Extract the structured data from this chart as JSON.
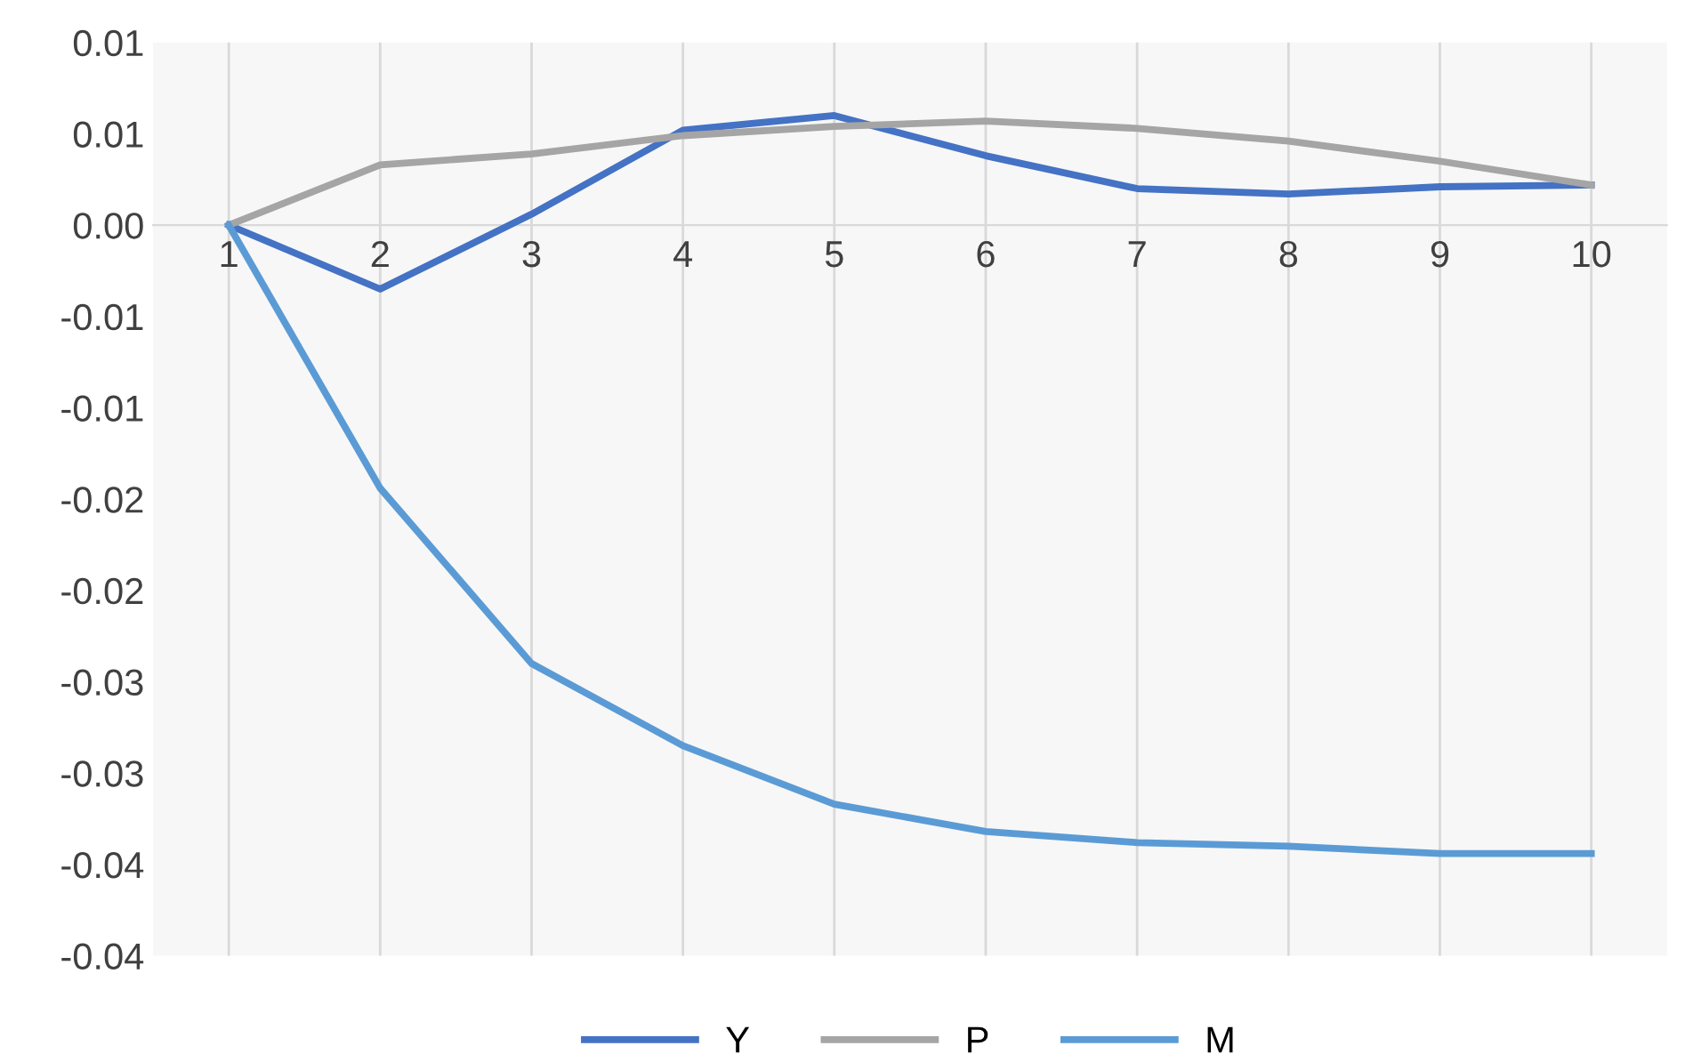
{
  "chart_data": {
    "type": "line",
    "categories": [
      "1",
      "2",
      "3",
      "4",
      "5",
      "6",
      "7",
      "8",
      "9",
      "10"
    ],
    "series": [
      {
        "name": "Y",
        "color": "#4472c4",
        "values": [
          0,
          -0.0035,
          0.0006,
          0.0052,
          0.006,
          0.0038,
          0.002,
          0.0017,
          0.0021,
          0.0022
        ]
      },
      {
        "name": "P",
        "color": "#a5a5a5",
        "values": [
          0,
          0.0033,
          0.0039,
          0.0049,
          0.0054,
          0.0057,
          0.0053,
          0.0046,
          0.0035,
          0.0022
        ]
      },
      {
        "name": "M",
        "color": "#5b9bd5",
        "values": [
          0,
          -0.0144,
          -0.024,
          -0.0285,
          -0.0317,
          -0.0332,
          -0.0338,
          -0.034,
          -0.0344,
          -0.0344
        ]
      }
    ],
    "ylim": [
      -0.04,
      0.01
    ],
    "yticks": [
      {
        "value": 0.01,
        "label": "0.01"
      },
      {
        "value": 0.005,
        "label": "0.01"
      },
      {
        "value": 0,
        "label": "0.00"
      },
      {
        "value": -0.005,
        "label": "-0.01"
      },
      {
        "value": -0.01,
        "label": "-0.01"
      },
      {
        "value": -0.015,
        "label": "-0.02"
      },
      {
        "value": -0.02,
        "label": "-0.02"
      },
      {
        "value": -0.025,
        "label": "-0.03"
      },
      {
        "value": -0.03,
        "label": "-0.03"
      },
      {
        "value": -0.035,
        "label": "-0.04"
      },
      {
        "value": -0.04,
        "label": "-0.04"
      }
    ],
    "grid": "x",
    "legend": "bottom",
    "marker": "none",
    "line_style": "solid"
  }
}
